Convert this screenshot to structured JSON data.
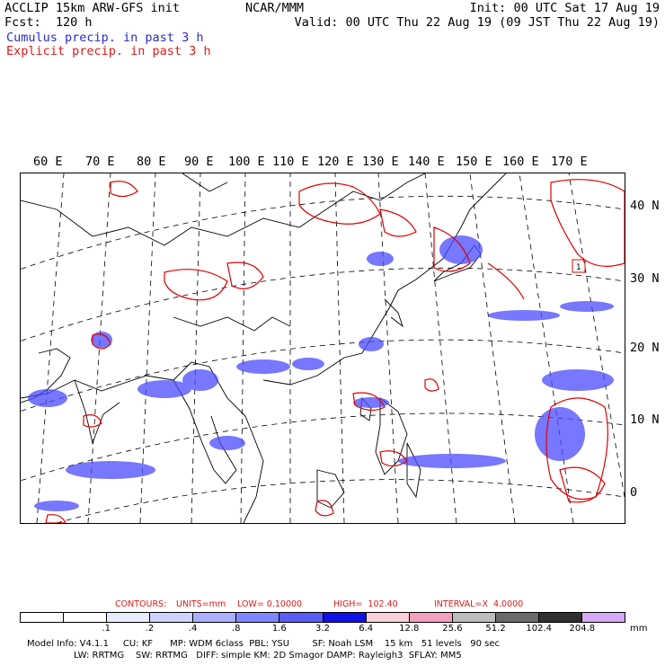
{
  "header": {
    "line1_left": "ACCLIP 15km ARW-GFS init",
    "line1_mid": "NCAR/MMM",
    "line1_right": "Init: 00 UTC Sat 17 Aug 19",
    "line2_left": "Fcst:  120 h",
    "line2_right": "Valid: 00 UTC Thu 22 Aug 19 (09 JST Thu 22 Aug 19)",
    "legend_cumulus": "Cumulus precip. in past 3 h",
    "legend_explicit": "Explicit precip. in past 3 h"
  },
  "map": {
    "lon_labels": [
      "60 E",
      "70 E",
      "80 E",
      "90 E",
      "100 E",
      "110 E",
      "120 E",
      "130 E",
      "140 E",
      "150 E",
      "160 E",
      "170 E"
    ],
    "lat_labels": [
      "40 N",
      "30 N",
      "20 N",
      "10 N",
      "0"
    ],
    "station_marker": "1",
    "colors": {
      "coast": "#000000",
      "graticule": "#000000",
      "cumulus": "#3a3aff",
      "explicit": "#e00000"
    }
  },
  "contours": {
    "label": "CONTOURS:",
    "units": "UNITS=mm",
    "low": "LOW= 0.10000",
    "high": "HIGH=  102.40",
    "interval": "INTERVAL=X  4.0000"
  },
  "colorbar": {
    "colors": [
      "#ffffff",
      "#ffffff",
      "#e8ecff",
      "#cdd3ff",
      "#a9b0ff",
      "#7f86ff",
      "#5a5cf5",
      "#1010e8",
      "#f8d0d8",
      "#f4a0c0",
      "#bdbdbd",
      "#6a6a6a",
      "#303030",
      "#d8a8f8"
    ],
    "ticks": [
      ".1",
      ".2",
      ".4",
      ".8",
      "1.6",
      "3.2",
      "6.4",
      "12.8",
      "25.6",
      "51.2",
      "102.4",
      "204.8"
    ],
    "unit": "mm"
  },
  "footer": {
    "line1": "Model Info: V4.1.1     CU: KF      MP: WDM 6class  PBL: YSU        SF: Noah LSM    15 km   51 levels   90 sec",
    "line2": "LW: RRTMG    SW: RRTMG   DIFF: simple KM: 2D Smagor DAMP: Rayleigh3  SFLAY: MM5"
  }
}
